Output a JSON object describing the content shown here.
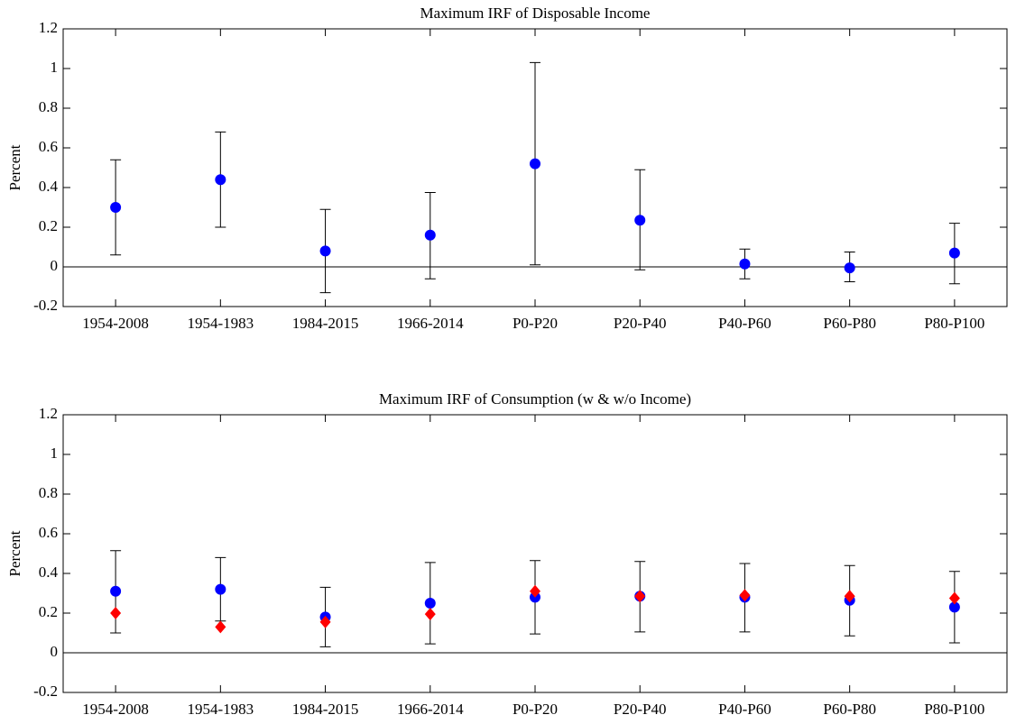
{
  "chart_data": [
    {
      "type": "scatter",
      "title": "Maximum IRF of Disposable Income",
      "y_label": "Percent",
      "categories": [
        "1954-2008",
        "1954-1983",
        "1984-2015",
        "1966-2014",
        "P0-P20",
        "P20-P40",
        "P40-P60",
        "P60-P80",
        "P80-P100"
      ],
      "ylim": [
        -0.2,
        1.2
      ],
      "yticks": [
        -0.2,
        0,
        0.2,
        0.4,
        0.6,
        0.8,
        1,
        1.2
      ],
      "hline": 0,
      "series": [
        {
          "color": "#0000ff",
          "marker": "circle",
          "values": [
            0.3,
            0.44,
            0.08,
            0.16,
            0.52,
            0.235,
            0.015,
            -0.005,
            0.07
          ],
          "lower": [
            0.06,
            0.2,
            -0.13,
            -0.06,
            0.01,
            -0.015,
            -0.06,
            -0.075,
            -0.085
          ],
          "upper": [
            0.54,
            0.68,
            0.29,
            0.375,
            1.03,
            0.49,
            0.09,
            0.075,
            0.22
          ]
        }
      ]
    },
    {
      "type": "scatter",
      "title": "Maximum IRF of Consumption (w & w/o Income)",
      "y_label": "Percent",
      "categories": [
        "1954-2008",
        "1954-1983",
        "1984-2015",
        "1966-2014",
        "P0-P20",
        "P20-P40",
        "P40-P60",
        "P60-P80",
        "P80-P100"
      ],
      "ylim": [
        -0.2,
        1.2
      ],
      "yticks": [
        -0.2,
        0,
        0.2,
        0.4,
        0.6,
        0.8,
        1,
        1.2
      ],
      "hline": 0,
      "series": [
        {
          "color": "#0000ff",
          "marker": "circle",
          "values": [
            0.31,
            0.32,
            0.18,
            0.25,
            0.28,
            0.285,
            0.28,
            0.265,
            0.23
          ],
          "lower": [
            0.1,
            0.16,
            0.03,
            0.045,
            0.095,
            0.105,
            0.105,
            0.085,
            0.05
          ],
          "upper": [
            0.515,
            0.48,
            0.33,
            0.455,
            0.465,
            0.46,
            0.45,
            0.44,
            0.41
          ]
        },
        {
          "color": "#ff0000",
          "marker": "diamond",
          "values": [
            0.2,
            0.13,
            0.155,
            0.195,
            0.31,
            0.285,
            0.29,
            0.285,
            0.275
          ]
        }
      ]
    }
  ]
}
